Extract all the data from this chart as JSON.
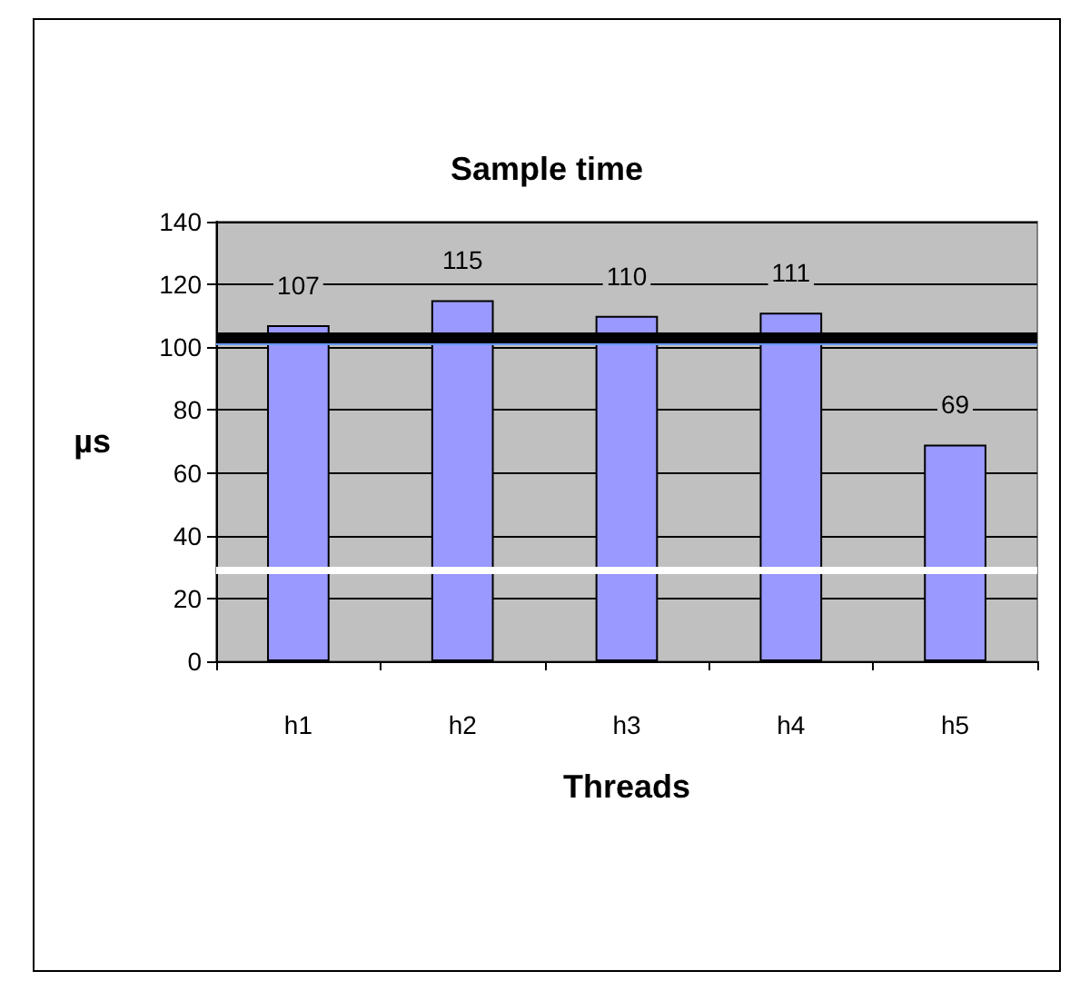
{
  "chart_data": {
    "type": "bar",
    "title": "Sample time",
    "xlabel": "Threads",
    "ylabel": "µs",
    "categories": [
      "h1",
      "h2",
      "h3",
      "h4",
      "h5"
    ],
    "values": [
      107,
      115,
      110,
      111,
      69
    ],
    "color": "#9999ff",
    "data_labels": true,
    "ylim": [
      0,
      140
    ],
    "yticks": [
      0,
      20,
      40,
      60,
      80,
      100,
      120,
      140
    ],
    "grid": "y",
    "ref_lines": [
      {
        "axis": "y",
        "value": 101,
        "color": "#6699ff",
        "line_style": "solid"
      },
      {
        "axis": "y",
        "value": 103,
        "color": "#000000",
        "line_style": "solid"
      },
      {
        "axis": "y",
        "value": 29,
        "color": "#ffffff",
        "line_style": "solid"
      }
    ]
  }
}
